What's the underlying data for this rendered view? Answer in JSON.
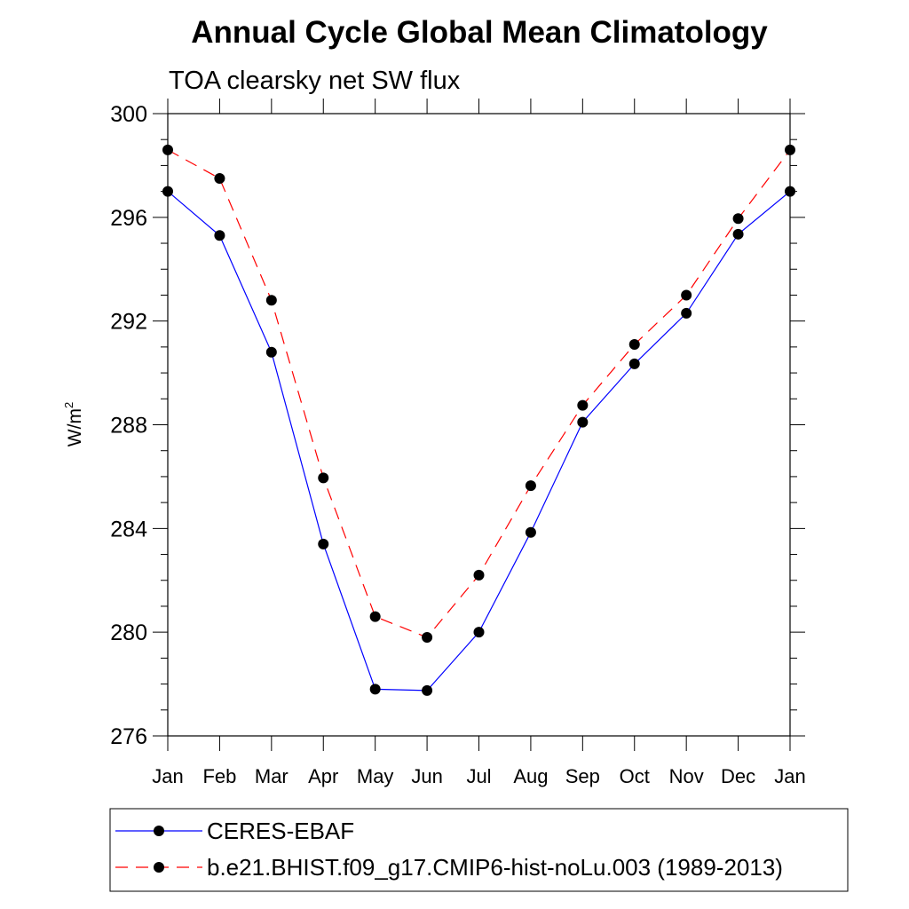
{
  "chart_data": {
    "type": "line",
    "title": "Annual Cycle Global Mean Climatology",
    "subtitle": "TOA clearsky net SW flux",
    "ylabel": "W/m",
    "ylabel_sup": "2",
    "categories": [
      "Jan",
      "Feb",
      "Mar",
      "Apr",
      "May",
      "Jun",
      "Jul",
      "Aug",
      "Sep",
      "Oct",
      "Nov",
      "Dec",
      "Jan"
    ],
    "ylim": [
      276,
      300
    ],
    "yticks": [
      276,
      280,
      284,
      288,
      292,
      296,
      300
    ],
    "ytick_labels": [
      "276",
      "280",
      "284",
      "288",
      "292",
      "296",
      "300"
    ],
    "grid": false,
    "legend_position": "bottom",
    "series": [
      {
        "name": "CERES-EBAF",
        "color": "#0000ff",
        "style": "solid",
        "marker": "filled-circle",
        "values": [
          297.0,
          295.3,
          290.8,
          283.4,
          277.8,
          277.75,
          280.0,
          283.85,
          288.1,
          290.35,
          292.3,
          295.35,
          297.0
        ]
      },
      {
        "name": "b.e21.BHIST.f09_g17.CMIP6-hist-noLu.003 (1989-2013)",
        "color": "#ff0000",
        "style": "dashed",
        "marker": "filled-circle",
        "values": [
          298.6,
          297.5,
          292.8,
          285.95,
          280.6,
          279.8,
          282.2,
          285.65,
          288.75,
          291.1,
          293.0,
          295.95,
          298.6
        ]
      }
    ]
  }
}
